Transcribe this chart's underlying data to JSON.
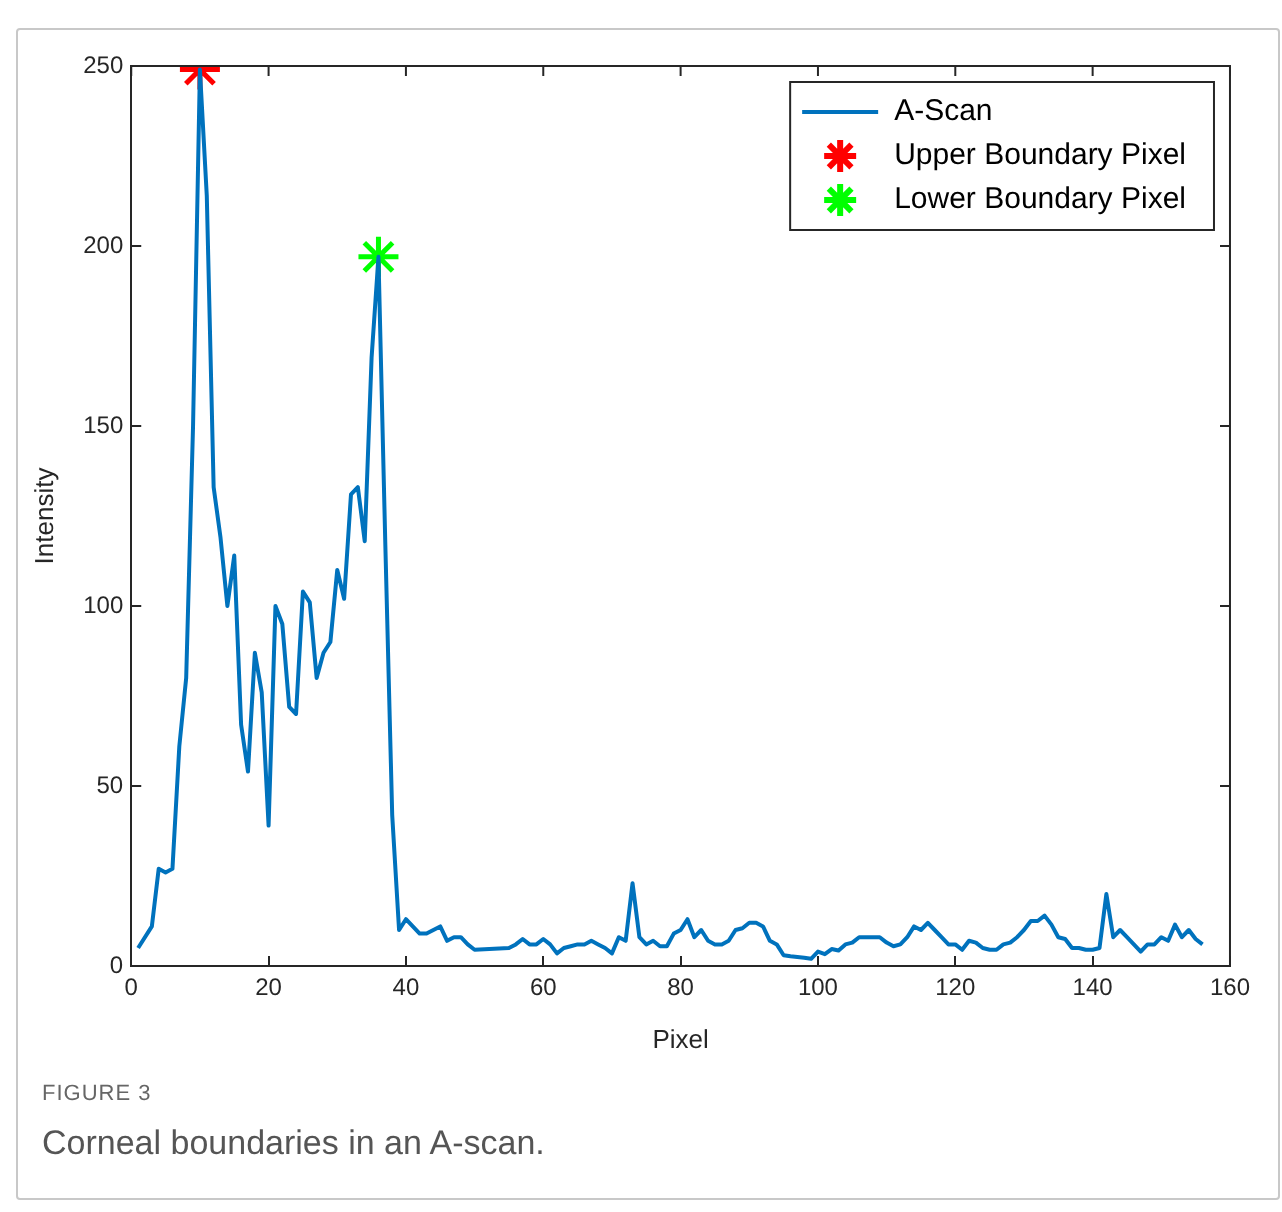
{
  "chart_data": {
    "type": "line",
    "xlabel": "Pixel",
    "ylabel": "Intensity",
    "xlim": [
      0,
      160
    ],
    "ylim": [
      0,
      250
    ],
    "xticks": [
      0,
      20,
      40,
      60,
      80,
      100,
      120,
      140,
      160
    ],
    "yticks": [
      0,
      50,
      100,
      150,
      200,
      250
    ],
    "grid": false,
    "legend": "top right",
    "series": [
      {
        "name": "A-Scan",
        "color": "#0072bd",
        "marker": "none",
        "x": [
          1,
          3,
          4,
          5,
          6,
          7,
          8,
          9,
          10,
          11,
          12,
          13,
          14,
          15,
          16,
          17,
          18,
          19,
          20,
          21,
          22,
          23,
          24,
          25,
          26,
          27,
          28,
          29,
          30,
          31,
          32,
          33,
          34,
          35,
          36,
          37,
          38,
          39,
          40,
          41,
          42,
          43,
          44,
          45,
          46,
          47,
          48,
          49,
          50,
          55,
          56,
          57,
          58,
          59,
          60,
          61,
          62,
          63,
          64,
          65,
          66,
          67,
          68,
          69,
          70,
          71,
          72,
          73,
          74,
          75,
          76,
          77,
          78,
          79,
          80,
          81,
          82,
          83,
          84,
          85,
          86,
          87,
          88,
          89,
          90,
          91,
          92,
          93,
          94,
          95,
          96,
          97,
          98,
          99,
          100,
          101,
          102,
          103,
          104,
          105,
          106,
          107,
          108,
          109,
          110,
          111,
          112,
          113,
          114,
          115,
          116,
          117,
          118,
          119,
          120,
          121,
          122,
          123,
          124,
          125,
          126,
          127,
          128,
          129,
          130,
          131,
          132,
          133,
          134,
          135,
          136,
          137,
          138,
          139,
          140,
          141,
          142,
          143,
          144,
          145,
          146,
          147,
          148,
          149,
          150,
          151,
          152,
          153,
          154,
          155,
          156
        ],
        "values": [
          5,
          11,
          27,
          26,
          27,
          61,
          80,
          150,
          249,
          214,
          133,
          119,
          100,
          114,
          67,
          54,
          87,
          76,
          39,
          100,
          95,
          72,
          70,
          104,
          101,
          80,
          87,
          90,
          110,
          102,
          131,
          133,
          118,
          169,
          197,
          117,
          42,
          10,
          13,
          11,
          9,
          9,
          10,
          11,
          7,
          8,
          8,
          6,
          4.5,
          5,
          6,
          7.5,
          6,
          6,
          7.5,
          6,
          3.5,
          5,
          5.5,
          6,
          6,
          7,
          6,
          5,
          3.5,
          8,
          7,
          23,
          8,
          6,
          7,
          5.5,
          5.5,
          9,
          10,
          13,
          8,
          10,
          7,
          6,
          6,
          7,
          10,
          10.5,
          12,
          12,
          11,
          7,
          6,
          3,
          2.7,
          2.5,
          2.3,
          2,
          4,
          3.3,
          4.7,
          4.3,
          6,
          6.5,
          8,
          8,
          8,
          8,
          6.5,
          5.5,
          6,
          8,
          11,
          10,
          12,
          10,
          8,
          6,
          6,
          4.5,
          7,
          6.5,
          5,
          4.5,
          4.5,
          6,
          6.5,
          8,
          10,
          12.5,
          12.5,
          14,
          11.5,
          8,
          7.5,
          5,
          5,
          4.5,
          4.5,
          5,
          20,
          8,
          10,
          8,
          6,
          4,
          6,
          6,
          8,
          7,
          11.5,
          8,
          10,
          7.5,
          6
        ]
      },
      {
        "name": "Upper Boundary Pixel",
        "type": "scatter",
        "color": "#ff0000",
        "marker": "cross",
        "x": [
          10
        ],
        "values": [
          249
        ]
      },
      {
        "name": "Lower Boundary Pixel",
        "type": "scatter",
        "color": "#00ff00",
        "marker": "cross",
        "x": [
          36
        ],
        "values": [
          197
        ]
      }
    ],
    "annotations": [
      "FIGURE 3",
      "Corneal boundaries in an A-scan."
    ]
  }
}
